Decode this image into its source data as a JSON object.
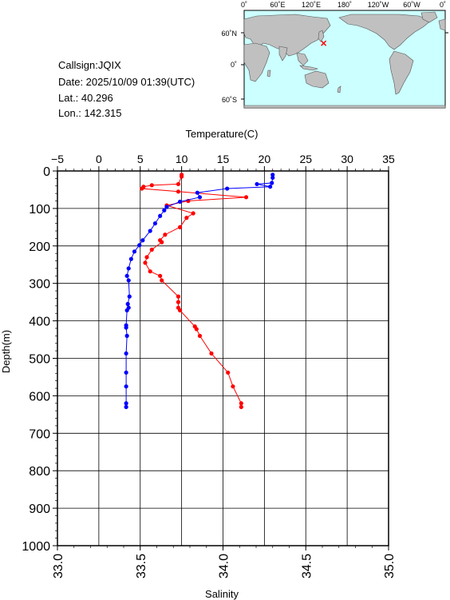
{
  "info": {
    "callsign": "Callsign:JQIX",
    "date": "Date:  2025/10/09 01:39(UTC)",
    "lat": "Lat.:  40.296",
    "lon": "Lon.:  142.315"
  },
  "map": {
    "lon_ticks": [
      "0˚",
      "60˚E",
      "120˚E",
      "180˚",
      "120˚W",
      "60˚W",
      "0˚"
    ],
    "lat_ticks": [
      "60˚N",
      "0˚",
      "60˚S"
    ],
    "ocean_color": "#ccffff",
    "land_color": "#c0c0c0",
    "marker_color": "#ff0000",
    "station_lon": 142.315,
    "station_lat": 40.296
  },
  "chart_data": {
    "type": "line",
    "top_axis_label": "Temperature(C)",
    "bottom_axis_label": "Salinity",
    "ylabel": "Depth(m)",
    "temperature_range": [
      -5,
      35
    ],
    "salinity_range": [
      33.0,
      35.0
    ],
    "depth_range": [
      0,
      1000
    ],
    "temperature_ticks": [
      "−5",
      "0",
      "5",
      "10",
      "15",
      "20",
      "25",
      "30",
      "35"
    ],
    "salinity_ticks": [
      "33.0",
      "33.5",
      "34.0",
      "34.5",
      "35.0"
    ],
    "depth_ticks": [
      "0",
      "100",
      "200",
      "300",
      "400",
      "500",
      "600",
      "700",
      "800",
      "900",
      "1000"
    ],
    "grid": true,
    "series": [
      {
        "color": "#ff0000",
        "axis": "salinity",
        "points": [
          [
            33.75,
            10
          ],
          [
            33.75,
            15
          ],
          [
            33.73,
            35
          ],
          [
            33.57,
            38
          ],
          [
            33.52,
            42
          ],
          [
            33.51,
            47
          ],
          [
            33.73,
            55
          ],
          [
            34.14,
            70
          ],
          [
            33.79,
            80
          ],
          [
            33.66,
            92
          ],
          [
            33.82,
            113
          ],
          [
            33.78,
            125
          ],
          [
            33.74,
            150
          ],
          [
            33.65,
            170
          ],
          [
            33.62,
            185
          ],
          [
            33.63,
            190
          ],
          [
            33.57,
            210
          ],
          [
            33.54,
            230
          ],
          [
            33.53,
            245
          ],
          [
            33.56,
            268
          ],
          [
            33.62,
            280
          ],
          [
            33.63,
            292
          ],
          [
            33.73,
            335
          ],
          [
            33.73,
            350
          ],
          [
            33.73,
            365
          ],
          [
            33.74,
            372
          ],
          [
            33.83,
            415
          ],
          [
            33.84,
            422
          ],
          [
            33.86,
            440
          ],
          [
            33.93,
            487
          ],
          [
            34.03,
            538
          ],
          [
            34.06,
            575
          ],
          [
            34.11,
            620
          ],
          [
            34.11,
            630
          ]
        ]
      },
      {
        "color": "#0000ff",
        "axis": "temperature",
        "points": [
          [
            21.0,
            10
          ],
          [
            21.0,
            18
          ],
          [
            20.9,
            32
          ],
          [
            19.1,
            35
          ],
          [
            20.7,
            42
          ],
          [
            15.5,
            47
          ],
          [
            11.9,
            58
          ],
          [
            12.2,
            70
          ],
          [
            9.8,
            82
          ],
          [
            8.2,
            96
          ],
          [
            7.9,
            105
          ],
          [
            7.4,
            120
          ],
          [
            6.8,
            140
          ],
          [
            6.2,
            160
          ],
          [
            5.3,
            185
          ],
          [
            4.9,
            198
          ],
          [
            4.3,
            215
          ],
          [
            3.9,
            235
          ],
          [
            3.6,
            260
          ],
          [
            3.4,
            280
          ],
          [
            3.6,
            292
          ],
          [
            3.7,
            335
          ],
          [
            3.5,
            355
          ],
          [
            3.6,
            365
          ],
          [
            3.4,
            372
          ],
          [
            3.3,
            412
          ],
          [
            3.3,
            418
          ],
          [
            3.4,
            440
          ],
          [
            3.3,
            487
          ],
          [
            3.3,
            538
          ],
          [
            3.3,
            575
          ],
          [
            3.3,
            620
          ],
          [
            3.3,
            630
          ]
        ]
      }
    ]
  }
}
